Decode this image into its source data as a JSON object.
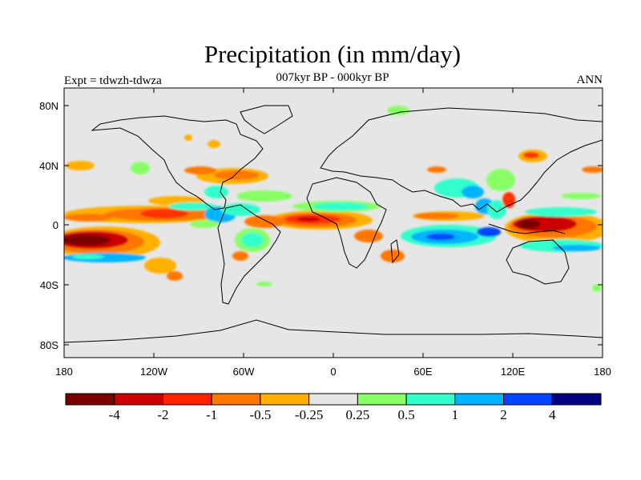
{
  "title": "Precipitation (in mm/day)",
  "left_string": "Expt = tdwzh-tdwza",
  "center_string": "007kyr BP - 000kyr BP",
  "right_string": "ANN",
  "map": {
    "projection": "cylindrical equidistant",
    "lon_range": [
      -180,
      180
    ],
    "lat_range": [
      -90,
      90
    ],
    "background_color": "#e6e6e6",
    "lat_ticks": [
      "80N",
      "40N",
      "0",
      "40S",
      "80S"
    ],
    "lon_ticks": [
      "180",
      "120W",
      "60W",
      "0",
      "60E",
      "120E",
      "180"
    ]
  },
  "colorbar": {
    "colors": [
      "#7a0000",
      "#cc0000",
      "#ff2200",
      "#ff7700",
      "#ffb000",
      "#e6e6e6",
      "#88ff66",
      "#33ffcc",
      "#00b4ff",
      "#0044ff",
      "#000080"
    ],
    "labels": [
      "-4",
      "-2",
      "-1",
      "-0.5",
      "-0.25",
      "0.25",
      "0.5",
      "1",
      "2",
      "4"
    ]
  },
  "anomaly_regions": [
    {
      "name": "central-pacific-dry",
      "color": "#b80000",
      "lon": -160,
      "lat": -8
    },
    {
      "name": "eastern-pacific-dry",
      "color": "#ff4400",
      "lon": -115,
      "lat": 7
    },
    {
      "name": "atlantic-itcz-dry",
      "color": "#ff3300",
      "lon": -10,
      "lat": 3
    },
    {
      "name": "western-pacific-dry",
      "color": "#cc0000",
      "lon": 140,
      "lat": 0
    },
    {
      "name": "indian-ocean-wet",
      "color": "#00b4ff",
      "lon": 50,
      "lat": -8
    },
    {
      "name": "sahel-wet",
      "color": "#33ffcc",
      "lon": 10,
      "lat": 13
    },
    {
      "name": "south-asia-wet",
      "color": "#33ffcc",
      "lon": 80,
      "lat": 18
    }
  ]
}
